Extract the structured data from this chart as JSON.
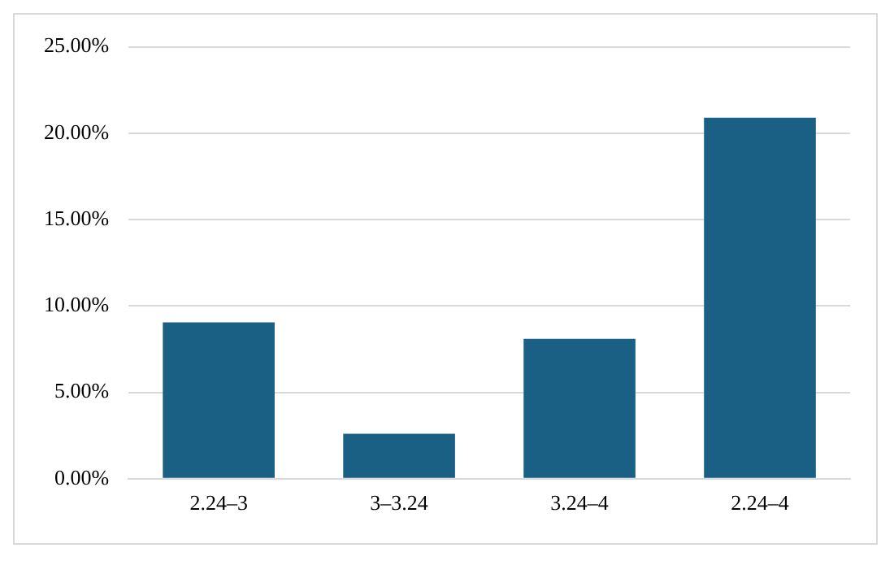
{
  "chart_data": {
    "type": "bar",
    "categories": [
      "2.24–3",
      "3–3.24",
      "3.24–4",
      "2.24–4"
    ],
    "values": [
      9.05,
      2.6,
      8.1,
      20.9
    ],
    "color": "#1a6085",
    "ylim": [
      0,
      25
    ],
    "yticks": [
      {
        "value": 0,
        "label": "0.00%"
      },
      {
        "value": 5,
        "label": "5.00%"
      },
      {
        "value": 10,
        "label": "10.00%"
      },
      {
        "value": 15,
        "label": "15.00%"
      },
      {
        "value": 20,
        "label": "20.00%"
      },
      {
        "value": 25,
        "label": "25.00%"
      }
    ],
    "grid": "y",
    "legend": false
  }
}
